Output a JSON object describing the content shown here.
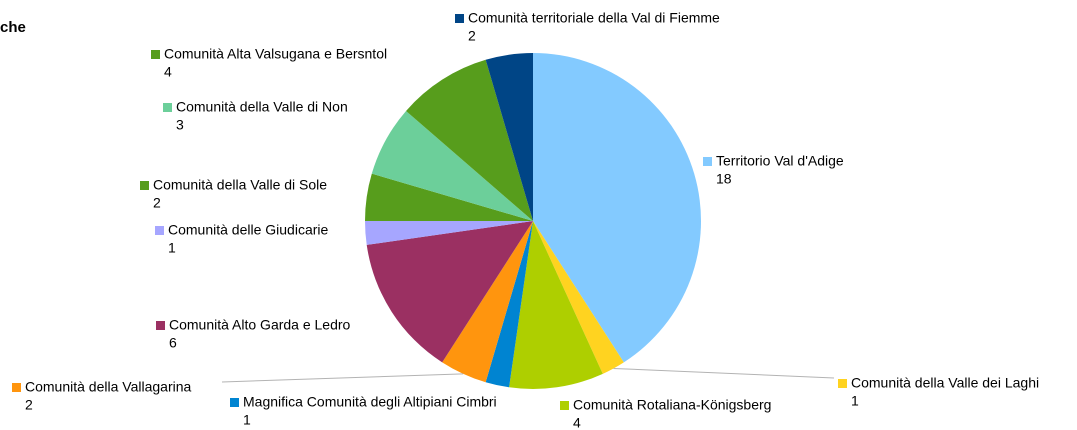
{
  "chart_data": {
    "type": "pie",
    "title": "che",
    "categories": [
      "Territorio Val d'Adige",
      "Comunità della Valle dei Laghi",
      "Comunità Rotaliana-Königsberg",
      "Magnifica Comunità degli Altipiani Cimbri",
      "Comunità della Vallagarina",
      "Comunità Alto Garda e Ledro",
      "Comunità delle Giudicarie",
      "Comunità della Valle di Sole",
      "Comunità della Valle di Non",
      "Comunità Alta Valsugana e Bersntol",
      "Comunità territoriale della Val di Fiemme"
    ],
    "values": [
      18,
      1,
      4,
      1,
      2,
      6,
      1,
      2,
      3,
      4,
      2
    ],
    "colors": [
      "#83caff",
      "#ffd320",
      "#aecf00",
      "#0084d1",
      "#ff950e",
      "#9b3062",
      "#a6a6ff",
      "#579d1c",
      "#6ccf9a",
      "#579d1c",
      "#004586"
    ]
  }
}
